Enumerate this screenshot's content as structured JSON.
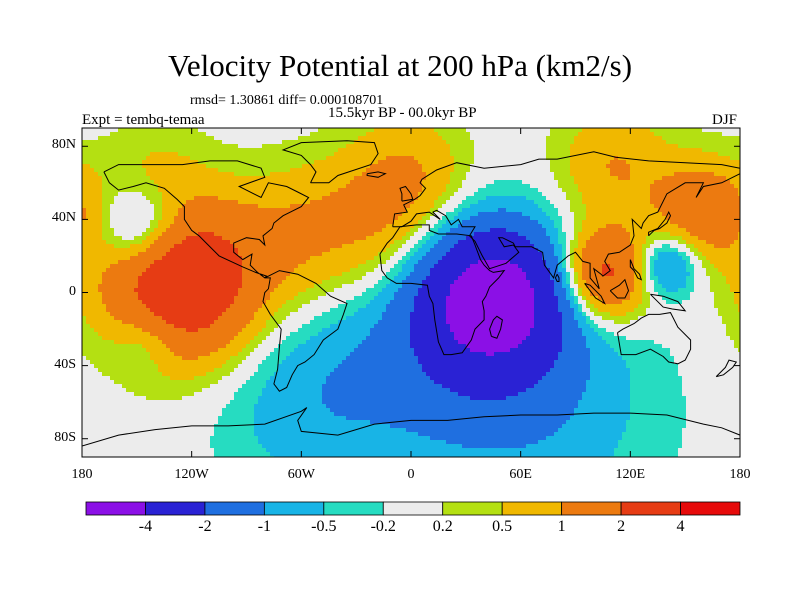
{
  "title": "Velocity Potential at 200 hPa (km2/s)",
  "stats": "rmsd= 1.30861  diff= 0.000108701",
  "period": "15.5kyr BP - 00.0kyr BP",
  "experiment": "Expt = tembq-temaa",
  "season": "DJF",
  "y_axis": {
    "ticks": [
      {
        "label": "80N",
        "value": 80
      },
      {
        "label": "40N",
        "value": 40
      },
      {
        "label": "0",
        "value": 0
      },
      {
        "label": "40S",
        "value": -40
      },
      {
        "label": "80S",
        "value": -80
      }
    ]
  },
  "x_axis": {
    "ticks": [
      {
        "label": "180",
        "value": -180
      },
      {
        "label": "120W",
        "value": -120
      },
      {
        "label": "60W",
        "value": -60
      },
      {
        "label": "0",
        "value": 0
      },
      {
        "label": "60E",
        "value": 60
      },
      {
        "label": "120E",
        "value": 120
      },
      {
        "label": "180",
        "value": 180
      }
    ]
  },
  "colorbar": {
    "levels": [
      "-4",
      "-2",
      "-1",
      "-0.5",
      "-0.2",
      "0.2",
      "0.5",
      "1",
      "2",
      "4"
    ],
    "colors": [
      "#8b10e6",
      "#2a22d4",
      "#1f6fe0",
      "#18b4e6",
      "#26dcc1",
      "#ececec",
      "#b4e012",
      "#f0b800",
      "#ec7a10",
      "#e63c14",
      "#e60a0a"
    ]
  },
  "map_data": {
    "type": "filled_contour",
    "field": "velocity potential difference at 200 hPa",
    "units": "km2/s",
    "lon_range": [
      -180,
      180
    ],
    "lat_range": [
      -90,
      90
    ],
    "centers": [
      {
        "lon": 45,
        "lat": -2,
        "amp": -4.5,
        "r": 26
      },
      {
        "lon": 35,
        "lat": -25,
        "amp": -1.4,
        "r": 38
      },
      {
        "lon": -50,
        "lat": -55,
        "amp": -0.9,
        "r": 40
      },
      {
        "lon": 70,
        "lat": -65,
        "amp": -0.7,
        "r": 50
      },
      {
        "lon": -148,
        "lat": 35,
        "amp": -1.6,
        "r": 16
      },
      {
        "lon": 140,
        "lat": 15,
        "amp": -1.6,
        "r": 12
      },
      {
        "lon": -145,
        "lat": -25,
        "amp": -0.8,
        "r": 13
      },
      {
        "lon": -125,
        "lat": 5,
        "amp": 3.3,
        "r": 30
      },
      {
        "lon": -60,
        "lat": 30,
        "amp": 0.9,
        "r": 28
      },
      {
        "lon": -10,
        "lat": 40,
        "amp": 1.0,
        "r": 28
      },
      {
        "lon": 105,
        "lat": 10,
        "amp": 2.6,
        "r": 18
      },
      {
        "lon": 160,
        "lat": 45,
        "amp": 1.6,
        "r": 20
      },
      {
        "lon": 110,
        "lat": 70,
        "amp": 1.0,
        "r": 22
      },
      {
        "lon": 0,
        "lat": 70,
        "amp": 0.6,
        "r": 22
      },
      {
        "lon": -140,
        "lat": 70,
        "amp": 0.4,
        "r": 20
      }
    ]
  }
}
